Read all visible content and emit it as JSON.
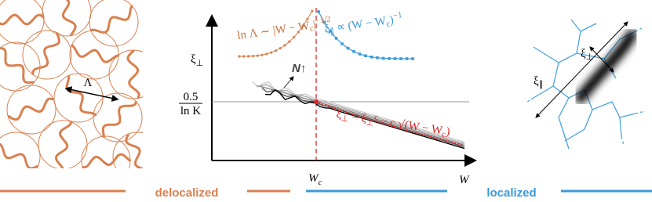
{
  "left_panel": {
    "length_label": "Λ"
  },
  "center_panel": {
    "y_axis_label": {
      "main": "ξ",
      "sub": "⊥"
    },
    "threshold_label": {
      "numerator": "0.5",
      "denominator": "ln K"
    },
    "system_size_label": "N↑",
    "delocalized_law": {
      "main": "ln Λ ∼ |W − W",
      "sub": "c",
      "tail": "|",
      "sup": "−1/2"
    },
    "localized_law": {
      "main": "ξ",
      "sub": "∥",
      "tail": " ∝ (W − W",
      "sub2": "c",
      "tail2": ")",
      "sup": "−1"
    },
    "critical_law": {
      "main": "ξ",
      "sub": "⊥",
      "tail": " = ξ",
      "sub2": "⊥",
      "sup2": "c",
      "tail2": " − c √(W − W",
      "sub3": "c",
      "tail3": ")"
    },
    "critical_point_label": {
      "main": "W",
      "sub": "c"
    },
    "x_axis_label": "W"
  },
  "phase_bar": {
    "delocalized": "delocalized",
    "localized": "localized"
  },
  "right_panel": {
    "transverse_label": {
      "main": "ξ",
      "sub": "⊥"
    },
    "longitudinal_label": {
      "main": "ξ",
      "sub": "∥"
    }
  }
}
